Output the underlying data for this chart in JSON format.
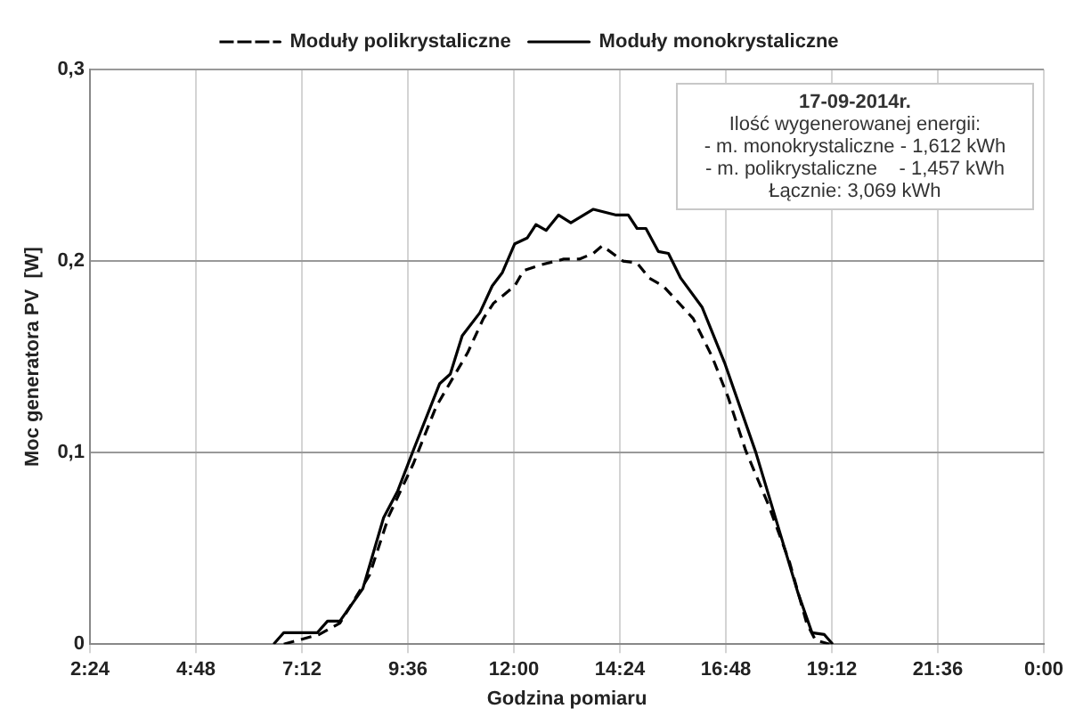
{
  "chart_data": {
    "type": "line",
    "xlabel": "Godzina pomiaru",
    "ylabel": "Moc generatora PV  [W]",
    "xlim": [
      2.4,
      24
    ],
    "xticks": [
      {
        "value": 2.4,
        "label": "2:24"
      },
      {
        "value": 4.8,
        "label": "4:48"
      },
      {
        "value": 7.2,
        "label": "7:12"
      },
      {
        "value": 9.6,
        "label": "9:36"
      },
      {
        "value": 12,
        "label": "12:00"
      },
      {
        "value": 14.4,
        "label": "14:24"
      },
      {
        "value": 16.8,
        "label": "16:48"
      },
      {
        "value": 19.2,
        "label": "19:12"
      },
      {
        "value": 21.6,
        "label": "21:36"
      },
      {
        "value": 24,
        "label": "0:00"
      }
    ],
    "ylim": [
      0,
      0.3
    ],
    "yticks": [
      {
        "value": 0,
        "label": "0"
      },
      {
        "value": 0.1,
        "label": "0,1"
      },
      {
        "value": 0.2,
        "label": "0,2"
      },
      {
        "value": 0.3,
        "label": "0,3"
      }
    ],
    "grid": true,
    "legend": "top",
    "marker": "none",
    "annotations": [
      "17-09-2014r.",
      "Ilość wygenerowanej energii:",
      "- m. monokrystaliczne - 1,612 kWh",
      "- m. polikrystaliczne    - 1,457 kWh",
      "Łącznie: 3,069 kWh"
    ],
    "series": [
      {
        "name": "Moduły polikrystaliczne",
        "color": "#000000",
        "line_style": "dashed",
        "x": [
          6.79,
          7.59,
          8.06,
          8.73,
          9.17,
          9.72,
          10.24,
          10.95,
          11.31,
          11.54,
          12.02,
          12.22,
          12.61,
          13.13,
          13.48,
          13.8,
          14,
          14.47,
          14.79,
          15.07,
          15.38,
          15.78,
          16.06,
          16.49,
          16.85,
          17.25,
          17.76,
          18.24,
          18.63,
          18.83,
          19.15
        ],
        "values": [
          0,
          0.005,
          0.011,
          0.036,
          0.067,
          0.094,
          0.124,
          0.152,
          0.17,
          0.178,
          0.187,
          0.195,
          0.198,
          0.201,
          0.201,
          0.204,
          0.208,
          0.2,
          0.199,
          0.191,
          0.187,
          0.177,
          0.17,
          0.15,
          0.129,
          0.101,
          0.073,
          0.043,
          0.011,
          0.002,
          0
        ]
      },
      {
        "name": "Moduły monokrystaliczne",
        "color": "#000000",
        "line_style": "solid",
        "x": [
          6.56,
          6.79,
          7.55,
          7.78,
          8.06,
          8.58,
          9.05,
          9.37,
          9.72,
          10.32,
          10.56,
          10.83,
          11.23,
          11.51,
          11.74,
          12.02,
          12.3,
          12.5,
          12.73,
          13.01,
          13.29,
          13.8,
          14.32,
          14.59,
          14.79,
          14.99,
          15.27,
          15.5,
          15.78,
          16.26,
          16.77,
          17.48,
          18.04,
          18.43,
          18.75,
          19.03,
          19.22
        ],
        "values": [
          0,
          0.006,
          0.006,
          0.012,
          0.012,
          0.029,
          0.066,
          0.08,
          0.101,
          0.136,
          0.141,
          0.161,
          0.173,
          0.187,
          0.194,
          0.209,
          0.212,
          0.219,
          0.216,
          0.224,
          0.22,
          0.227,
          0.224,
          0.224,
          0.217,
          0.217,
          0.205,
          0.204,
          0.191,
          0.176,
          0.147,
          0.1,
          0.057,
          0.027,
          0.006,
          0.005,
          0
        ]
      }
    ]
  }
}
